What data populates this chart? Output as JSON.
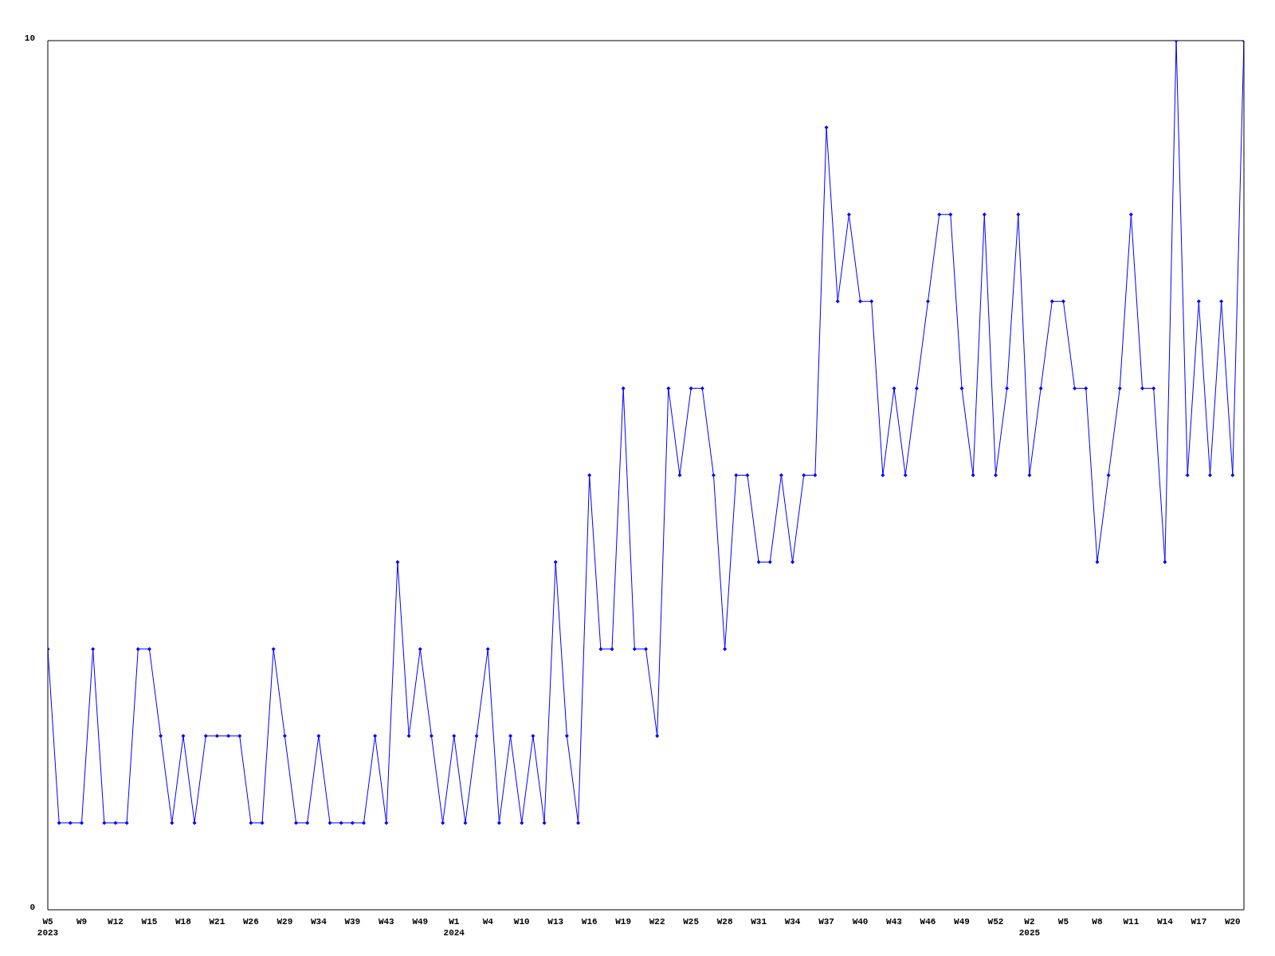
{
  "chart_data": {
    "type": "line",
    "categories": [
      "W5\n2023",
      null,
      null,
      "W9",
      null,
      null,
      "W12",
      null,
      null,
      "W15",
      null,
      null,
      "W18",
      null,
      null,
      "W21",
      null,
      null,
      "W26",
      null,
      null,
      "W29",
      null,
      null,
      "W34",
      null,
      null,
      "W39",
      null,
      null,
      "W43",
      null,
      null,
      "W49",
      null,
      null,
      "W1\n2024",
      null,
      null,
      "W4",
      null,
      null,
      "W10",
      null,
      null,
      "W13",
      null,
      null,
      "W16",
      null,
      null,
      "W19",
      null,
      null,
      "W22",
      null,
      null,
      "W25",
      null,
      null,
      "W28",
      null,
      null,
      "W31",
      null,
      null,
      "W34",
      null,
      null,
      "W37",
      null,
      null,
      "W40",
      null,
      null,
      "W43",
      null,
      null,
      "W46",
      null,
      null,
      "W49",
      null,
      null,
      "W52",
      null,
      null,
      "W2\n2025",
      null,
      null,
      "W5",
      null,
      null,
      "W8",
      null,
      null,
      "W11",
      null,
      null,
      "W14",
      null,
      null,
      "W17",
      null,
      null,
      "W20",
      null
    ],
    "series": [
      {
        "color": "#0000ff",
        "values": [
          3,
          1,
          1,
          1,
          3,
          1,
          1,
          1,
          3,
          3,
          2,
          1,
          2,
          1,
          2,
          2,
          2,
          2,
          1,
          1,
          3,
          2,
          1,
          1,
          2,
          1,
          1,
          1,
          1,
          2,
          1,
          4,
          2,
          3,
          2,
          1,
          2,
          1,
          2,
          3,
          1,
          2,
          1,
          2,
          1,
          4,
          2,
          1,
          5,
          3,
          3,
          6,
          3,
          3,
          2,
          6,
          5,
          6,
          6,
          5,
          3,
          5,
          5,
          4,
          4,
          5,
          4,
          5,
          5,
          9,
          7,
          8,
          7,
          7,
          5,
          6,
          5,
          6,
          7,
          8,
          8,
          6,
          5,
          8,
          5,
          6,
          8,
          5,
          6,
          7,
          7,
          6,
          6,
          4,
          5,
          6,
          8,
          6,
          6,
          4,
          10,
          5,
          7,
          5,
          7,
          5,
          10
        ]
      }
    ],
    "ylim": [
      0,
      10
    ],
    "yticks": [
      0,
      10
    ],
    "grid": false,
    "legend": false,
    "marker": "diamond",
    "line_style": "solid"
  }
}
